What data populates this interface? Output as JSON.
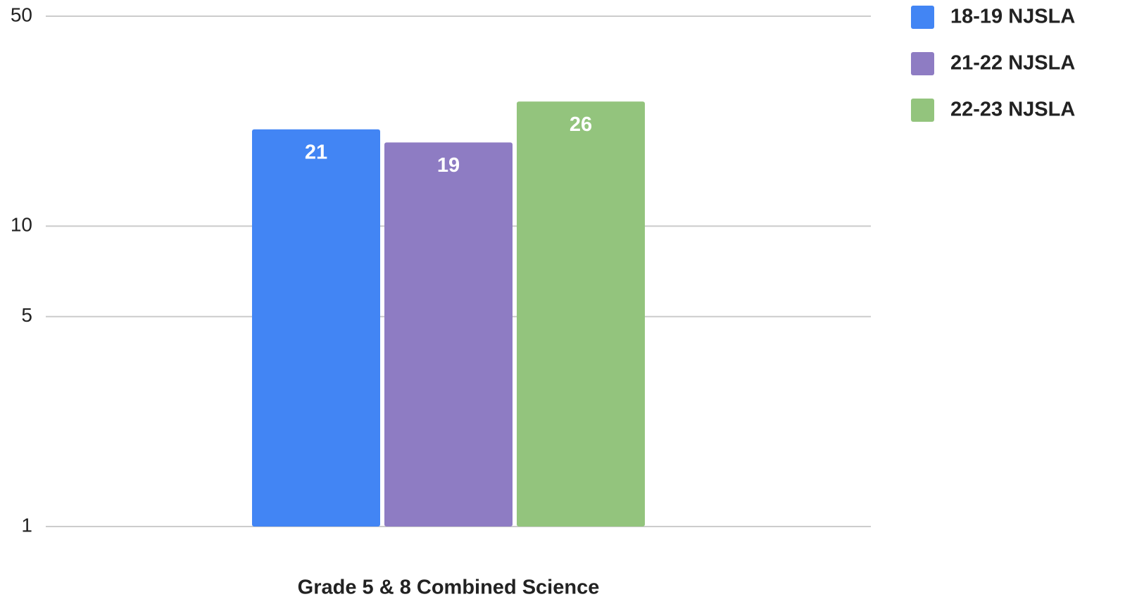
{
  "chart_data": {
    "type": "bar",
    "categories": [
      "Grade 5 & 8 Combined Science"
    ],
    "series": [
      {
        "name": "18-19 NJSLA",
        "color": "#4285f4",
        "values": [
          21
        ]
      },
      {
        "name": "21-22 NJSLA",
        "color": "#8e7cc3",
        "values": [
          19
        ]
      },
      {
        "name": "22-23 NJSLA",
        "color": "#93c47d",
        "values": [
          26
        ]
      }
    ],
    "ylim": [
      1,
      50
    ],
    "yticks": [
      1,
      5,
      10,
      50
    ],
    "log_scale": true,
    "grid": true,
    "legend": "top-right"
  }
}
